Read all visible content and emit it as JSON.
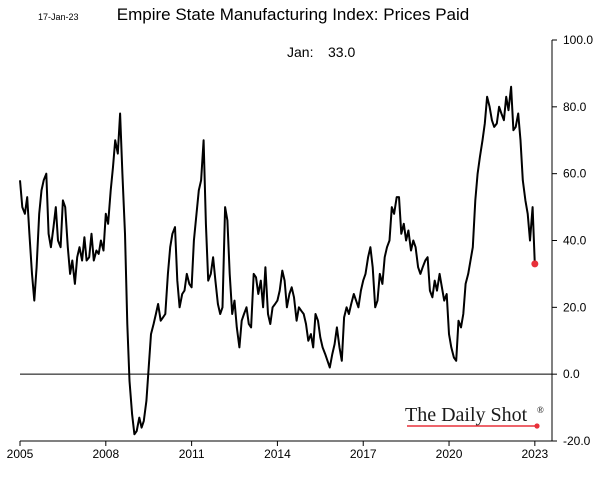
{
  "chart_data": {
    "type": "line",
    "date_stamp": "17-Jan-23",
    "title": "Empire State Manufacturing Index: Prices Paid",
    "annotation": {
      "label": "Jan:",
      "value": "33.0"
    },
    "brand": "The Daily Shot",
    "brand_mark": "®",
    "xlabel": "",
    "ylabel": "",
    "xlim": [
      2005,
      2023.6
    ],
    "ylim": [
      -20,
      100
    ],
    "x_tick_labels": [
      "2005",
      "2008",
      "2011",
      "2014",
      "2017",
      "2020",
      "2023"
    ],
    "x_ticks": [
      2005,
      2008,
      2011,
      2014,
      2017,
      2020,
      2023
    ],
    "y_tick_labels": [
      "100.0",
      "80.0",
      "60.0",
      "40.0",
      "20.0",
      "0.0",
      "-20.0"
    ],
    "y_ticks": [
      100,
      80,
      60,
      40,
      20,
      0,
      -20
    ],
    "reference_line": 0,
    "colors": {
      "line": "#000000",
      "marker": "#e8303a",
      "brand_mark": "#e8303a",
      "zero_line": "#000000"
    },
    "series": [
      {
        "name": "Prices Paid",
        "x": [
          2005.0,
          2005.08,
          2005.17,
          2005.25,
          2005.33,
          2005.42,
          2005.5,
          2005.58,
          2005.67,
          2005.75,
          2005.83,
          2005.92,
          2006.0,
          2006.08,
          2006.17,
          2006.25,
          2006.33,
          2006.42,
          2006.5,
          2006.58,
          2006.67,
          2006.75,
          2006.83,
          2006.92,
          2007.0,
          2007.08,
          2007.17,
          2007.25,
          2007.33,
          2007.42,
          2007.5,
          2007.58,
          2007.67,
          2007.75,
          2007.83,
          2007.92,
          2008.0,
          2008.08,
          2008.17,
          2008.25,
          2008.33,
          2008.42,
          2008.5,
          2008.58,
          2008.67,
          2008.75,
          2008.83,
          2008.92,
          2009.0,
          2009.08,
          2009.17,
          2009.25,
          2009.33,
          2009.42,
          2009.5,
          2009.58,
          2009.67,
          2009.75,
          2009.83,
          2009.92,
          2010.0,
          2010.08,
          2010.17,
          2010.25,
          2010.33,
          2010.42,
          2010.5,
          2010.58,
          2010.67,
          2010.75,
          2010.83,
          2010.92,
          2011.0,
          2011.08,
          2011.17,
          2011.25,
          2011.33,
          2011.42,
          2011.5,
          2011.58,
          2011.67,
          2011.75,
          2011.83,
          2011.92,
          2012.0,
          2012.08,
          2012.17,
          2012.25,
          2012.33,
          2012.42,
          2012.5,
          2012.58,
          2012.67,
          2012.75,
          2012.83,
          2012.92,
          2013.0,
          2013.08,
          2013.17,
          2013.25,
          2013.33,
          2013.42,
          2013.5,
          2013.58,
          2013.67,
          2013.75,
          2013.83,
          2013.92,
          2014.0,
          2014.08,
          2014.17,
          2014.25,
          2014.33,
          2014.42,
          2014.5,
          2014.58,
          2014.67,
          2014.75,
          2014.83,
          2014.92,
          2015.0,
          2015.08,
          2015.17,
          2015.25,
          2015.33,
          2015.42,
          2015.5,
          2015.58,
          2015.67,
          2015.75,
          2015.83,
          2015.92,
          2016.0,
          2016.08,
          2016.17,
          2016.25,
          2016.33,
          2016.42,
          2016.5,
          2016.58,
          2016.67,
          2016.75,
          2016.83,
          2016.92,
          2017.0,
          2017.08,
          2017.17,
          2017.25,
          2017.33,
          2017.42,
          2017.5,
          2017.58,
          2017.67,
          2017.75,
          2017.83,
          2017.92,
          2018.0,
          2018.08,
          2018.17,
          2018.25,
          2018.33,
          2018.42,
          2018.5,
          2018.58,
          2018.67,
          2018.75,
          2018.83,
          2018.92,
          2019.0,
          2019.08,
          2019.17,
          2019.25,
          2019.33,
          2019.42,
          2019.5,
          2019.58,
          2019.67,
          2019.75,
          2019.83,
          2019.92,
          2020.0,
          2020.08,
          2020.17,
          2020.25,
          2020.33,
          2020.42,
          2020.5,
          2020.58,
          2020.67,
          2020.75,
          2020.83,
          2020.92,
          2021.0,
          2021.08,
          2021.17,
          2021.25,
          2021.33,
          2021.42,
          2021.5,
          2021.58,
          2021.67,
          2021.75,
          2021.83,
          2021.92,
          2022.0,
          2022.08,
          2022.17,
          2022.25,
          2022.33,
          2022.42,
          2022.5,
          2022.58,
          2022.67,
          2022.75,
          2022.83,
          2022.92,
          2023.0
        ],
        "y": [
          58,
          50,
          48,
          53,
          42,
          30,
          22,
          32,
          48,
          55,
          58,
          60,
          42,
          38,
          44,
          50,
          40,
          38,
          52,
          50,
          38,
          30,
          34,
          27,
          35,
          38,
          34,
          41,
          34,
          35,
          42,
          34,
          37,
          36,
          40,
          37,
          48,
          45,
          55,
          62,
          70,
          66,
          78,
          60,
          42,
          15,
          -2,
          -12,
          -18,
          -17,
          -13,
          -16,
          -14,
          -8,
          2,
          12,
          15,
          18,
          21,
          16,
          17,
          18,
          30,
          38,
          42,
          44,
          28,
          20,
          24,
          25,
          30,
          27,
          26,
          40,
          48,
          55,
          58,
          70,
          45,
          28,
          30,
          35,
          28,
          21,
          18,
          20,
          50,
          46,
          30,
          18,
          22,
          14,
          8,
          16,
          18,
          20,
          15,
          14,
          30,
          29,
          24,
          28,
          20,
          32,
          18,
          15,
          20,
          21,
          22,
          25,
          31,
          28,
          20,
          24,
          26,
          23,
          16,
          20,
          19,
          18,
          15,
          10,
          12,
          8,
          18,
          16,
          11,
          8,
          6,
          4,
          2,
          6,
          9,
          14,
          8,
          4,
          17,
          20,
          18,
          21,
          24,
          22,
          20,
          25,
          28,
          30,
          35,
          38,
          32,
          20,
          22,
          30,
          27,
          35,
          38,
          40,
          50,
          48,
          53,
          53,
          42,
          45,
          40,
          43,
          37,
          40,
          38,
          32,
          30,
          32,
          34,
          35,
          25,
          23,
          28,
          25,
          30,
          26,
          22,
          24,
          12,
          8,
          5,
          4,
          16,
          14,
          18,
          27,
          30,
          34,
          38,
          52,
          60,
          65,
          70,
          75,
          83,
          80,
          76,
          74,
          75,
          80,
          78,
          76,
          83,
          79,
          86,
          73,
          74,
          78,
          70,
          58,
          52,
          48,
          40,
          50,
          33
        ]
      }
    ]
  }
}
